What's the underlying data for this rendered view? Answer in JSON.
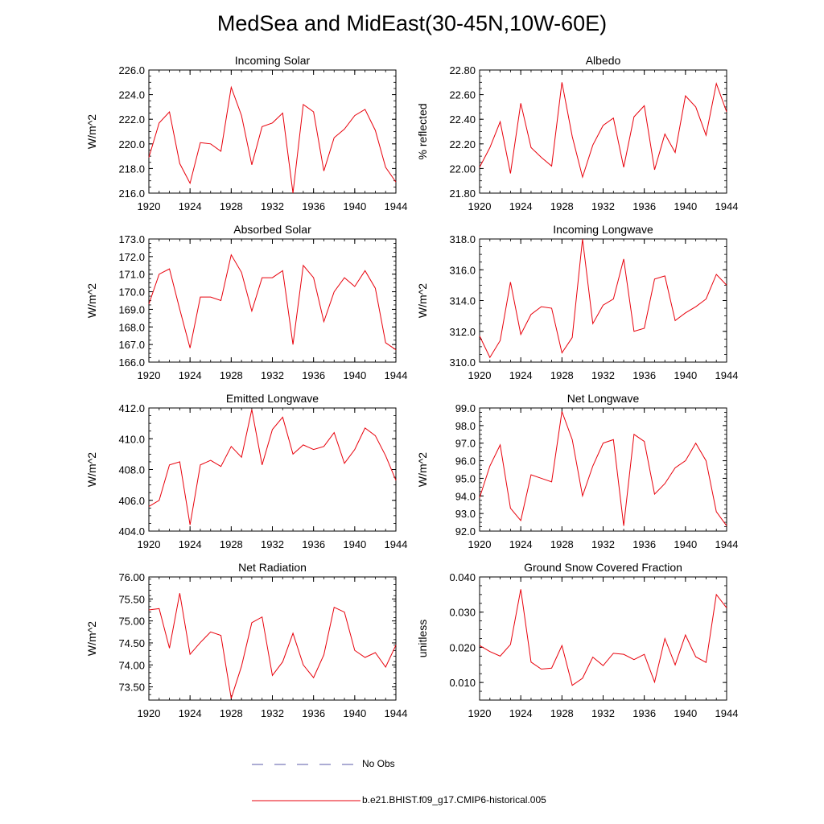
{
  "title": "MedSea and MidEast(30-45N,10W-60E)",
  "legend": {
    "obs_label": "No Obs",
    "obs_color": "#5a5aa8",
    "model_label": "b.e21.BHIST.f09_g17.CMIP6-historical.005",
    "model_color": "#e8000b"
  },
  "chart_data": [
    {
      "type": "line",
      "title": "Incoming Solar",
      "ylabel": "W/m^2",
      "xlim": [
        1920,
        1944
      ],
      "ylim": [
        216.0,
        226.0
      ],
      "yticks": [
        "216.0",
        "218.0",
        "220.0",
        "222.0",
        "224.0",
        "226.0"
      ],
      "xticks": [
        "1920",
        "1924",
        "1928",
        "1932",
        "1936",
        "1940",
        "1944"
      ],
      "x": [
        1920,
        1921,
        1922,
        1923,
        1924,
        1925,
        1926,
        1927,
        1928,
        1929,
        1930,
        1931,
        1932,
        1933,
        1934,
        1935,
        1936,
        1937,
        1938,
        1939,
        1940,
        1941,
        1942,
        1943,
        1944
      ],
      "values": [
        218.9,
        221.7,
        222.6,
        218.4,
        216.8,
        220.1,
        220.0,
        219.4,
        224.6,
        222.3,
        218.3,
        221.4,
        221.7,
        222.5,
        216.0,
        223.2,
        222.6,
        217.8,
        220.5,
        221.2,
        222.3,
        222.8,
        221.1,
        218.1,
        216.9
      ]
    },
    {
      "type": "line",
      "title": "Albedo",
      "ylabel": "% reflected",
      "xlim": [
        1920,
        1944
      ],
      "ylim": [
        21.8,
        22.8
      ],
      "yticks": [
        "21.80",
        "22.00",
        "22.20",
        "22.40",
        "22.60",
        "22.80"
      ],
      "xticks": [
        "1920",
        "1924",
        "1928",
        "1932",
        "1936",
        "1940",
        "1944"
      ],
      "x": [
        1920,
        1921,
        1922,
        1923,
        1924,
        1925,
        1926,
        1927,
        1928,
        1929,
        1930,
        1931,
        1932,
        1933,
        1934,
        1935,
        1936,
        1937,
        1938,
        1939,
        1940,
        1941,
        1942,
        1943,
        1944
      ],
      "values": [
        22.01,
        22.17,
        22.38,
        21.96,
        22.53,
        22.17,
        22.09,
        22.02,
        22.7,
        22.26,
        21.93,
        22.19,
        22.35,
        22.41,
        22.01,
        22.42,
        22.51,
        21.99,
        22.28,
        22.13,
        22.59,
        22.5,
        22.27,
        22.69,
        22.46
      ]
    },
    {
      "type": "line",
      "title": "Absorbed Solar",
      "ylabel": "W/m^2",
      "xlim": [
        1920,
        1944
      ],
      "ylim": [
        166.0,
        173.0
      ],
      "yticks": [
        "166.0",
        "167.0",
        "168.0",
        "169.0",
        "170.0",
        "171.0",
        "172.0",
        "173.0"
      ],
      "xticks": [
        "1920",
        "1924",
        "1928",
        "1932",
        "1936",
        "1940",
        "1944"
      ],
      "x": [
        1920,
        1921,
        1922,
        1923,
        1924,
        1925,
        1926,
        1927,
        1928,
        1929,
        1930,
        1931,
        1932,
        1933,
        1934,
        1935,
        1936,
        1937,
        1938,
        1939,
        1940,
        1941,
        1942,
        1943,
        1944
      ],
      "values": [
        169.3,
        171.0,
        171.3,
        169.0,
        166.8,
        169.7,
        169.7,
        169.5,
        172.1,
        171.1,
        168.9,
        170.8,
        170.8,
        171.2,
        167.0,
        171.5,
        170.8,
        168.3,
        170.0,
        170.8,
        170.3,
        171.2,
        170.2,
        167.1,
        166.7
      ]
    },
    {
      "type": "line",
      "title": "Incoming Longwave",
      "ylabel": "W/m^2",
      "xlim": [
        1920,
        1944
      ],
      "ylim": [
        310.0,
        318.0
      ],
      "yticks": [
        "310.0",
        "312.0",
        "314.0",
        "316.0",
        "318.0"
      ],
      "xticks": [
        "1920",
        "1924",
        "1928",
        "1932",
        "1936",
        "1940",
        "1944"
      ],
      "x": [
        1920,
        1921,
        1922,
        1923,
        1924,
        1925,
        1926,
        1927,
        1928,
        1929,
        1930,
        1931,
        1932,
        1933,
        1934,
        1935,
        1936,
        1937,
        1938,
        1939,
        1940,
        1941,
        1942,
        1943,
        1944
      ],
      "values": [
        311.7,
        310.3,
        311.4,
        315.2,
        311.8,
        313.1,
        313.6,
        313.5,
        310.6,
        311.6,
        318.0,
        312.5,
        313.7,
        314.1,
        316.7,
        312.0,
        312.2,
        315.4,
        315.6,
        312.7,
        313.2,
        313.6,
        314.1,
        315.7,
        315.0
      ]
    },
    {
      "type": "line",
      "title": "Emitted Longwave",
      "ylabel": "W/m^2",
      "xlim": [
        1920,
        1944
      ],
      "ylim": [
        404.0,
        412.0
      ],
      "yticks": [
        "404.0",
        "406.0",
        "408.0",
        "410.0",
        "412.0"
      ],
      "xticks": [
        "1920",
        "1924",
        "1928",
        "1932",
        "1936",
        "1940",
        "1944"
      ],
      "x": [
        1920,
        1921,
        1922,
        1923,
        1924,
        1925,
        1926,
        1927,
        1928,
        1929,
        1930,
        1931,
        1932,
        1933,
        1934,
        1935,
        1936,
        1937,
        1938,
        1939,
        1940,
        1941,
        1942,
        1943,
        1944
      ],
      "values": [
        405.6,
        406.0,
        408.3,
        408.5,
        404.4,
        408.3,
        408.6,
        408.2,
        409.5,
        408.8,
        411.9,
        408.3,
        410.6,
        411.4,
        409.0,
        409.6,
        409.3,
        409.5,
        410.4,
        408.4,
        409.3,
        410.7,
        410.2,
        408.9,
        407.3
      ]
    },
    {
      "type": "line",
      "title": "Net Longwave",
      "ylabel": "W/m^2",
      "xlim": [
        1920,
        1944
      ],
      "ylim": [
        92.0,
        99.0
      ],
      "yticks": [
        "92.0",
        "93.0",
        "94.0",
        "95.0",
        "96.0",
        "97.0",
        "98.0",
        "99.0"
      ],
      "xticks": [
        "1920",
        "1924",
        "1928",
        "1932",
        "1936",
        "1940",
        "1944"
      ],
      "x": [
        1920,
        1921,
        1922,
        1923,
        1924,
        1925,
        1926,
        1927,
        1928,
        1929,
        1930,
        1931,
        1932,
        1933,
        1934,
        1935,
        1936,
        1937,
        1938,
        1939,
        1940,
        1941,
        1942,
        1943,
        1944
      ],
      "values": [
        93.9,
        95.7,
        96.9,
        93.3,
        92.6,
        95.2,
        95.0,
        94.8,
        98.8,
        97.2,
        94.0,
        95.7,
        97.0,
        97.2,
        92.3,
        97.5,
        97.1,
        94.1,
        94.7,
        95.6,
        96.0,
        97.0,
        96.0,
        93.1,
        92.3
      ]
    },
    {
      "type": "line",
      "title": "Net Radiation",
      "ylabel": "W/m^2",
      "xlim": [
        1920,
        1944
      ],
      "ylim": [
        73.2,
        76.0
      ],
      "yticks": [
        "73.50",
        "74.00",
        "74.50",
        "75.00",
        "75.50",
        "76.00"
      ],
      "xticks": [
        "1920",
        "1924",
        "1928",
        "1932",
        "1936",
        "1940",
        "1944"
      ],
      "x": [
        1920,
        1921,
        1922,
        1923,
        1924,
        1925,
        1926,
        1927,
        1928,
        1929,
        1930,
        1931,
        1932,
        1933,
        1934,
        1935,
        1936,
        1937,
        1938,
        1939,
        1940,
        1941,
        1942,
        1943,
        1944
      ],
      "values": [
        75.25,
        75.28,
        74.38,
        75.63,
        74.24,
        74.51,
        74.75,
        74.67,
        73.24,
        73.97,
        74.96,
        75.09,
        73.76,
        74.07,
        74.72,
        74.0,
        73.71,
        74.23,
        75.31,
        75.2,
        74.33,
        74.17,
        74.28,
        73.95,
        74.45
      ]
    },
    {
      "type": "line",
      "title": "Ground Snow Covered Fraction",
      "ylabel": "unitless",
      "xlim": [
        1920,
        1944
      ],
      "ylim": [
        0.005,
        0.04
      ],
      "yticks": [
        "0.010",
        "0.020",
        "0.030",
        "0.040"
      ],
      "xticks": [
        "1920",
        "1924",
        "1928",
        "1932",
        "1936",
        "1940",
        "1944"
      ],
      "x": [
        1920,
        1921,
        1922,
        1923,
        1924,
        1925,
        1926,
        1927,
        1928,
        1929,
        1930,
        1931,
        1932,
        1933,
        1934,
        1935,
        1936,
        1937,
        1938,
        1939,
        1940,
        1941,
        1942,
        1943,
        1944
      ],
      "values": [
        0.0205,
        0.0188,
        0.0175,
        0.0208,
        0.0365,
        0.0158,
        0.0138,
        0.0141,
        0.0205,
        0.0092,
        0.0112,
        0.0172,
        0.0148,
        0.0183,
        0.018,
        0.0165,
        0.018,
        0.0101,
        0.0225,
        0.015,
        0.0235,
        0.0173,
        0.0157,
        0.035,
        0.0312
      ]
    }
  ]
}
